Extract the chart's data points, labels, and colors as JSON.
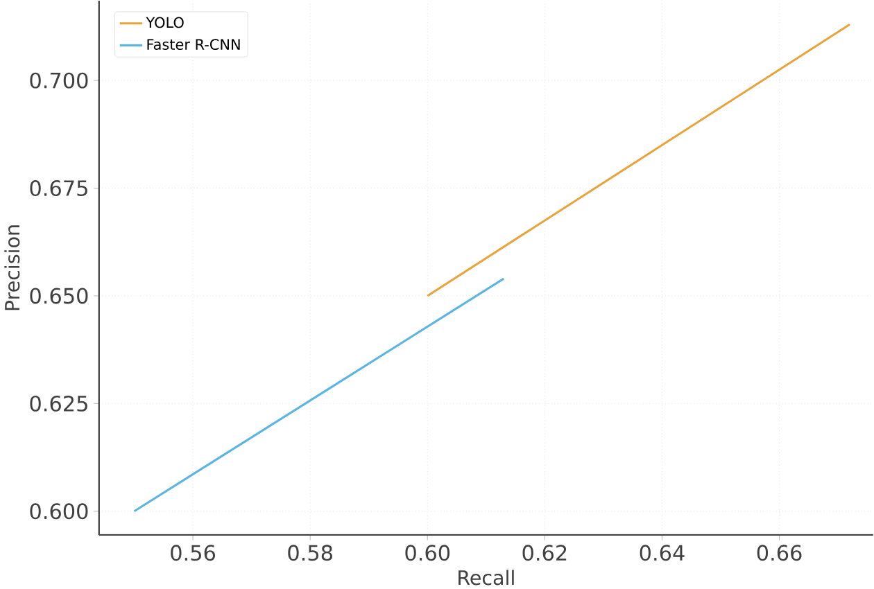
{
  "chart_data": {
    "type": "line",
    "xlabel": "Recall",
    "ylabel": "Precision",
    "xlim": [
      0.544,
      0.676
    ],
    "ylim": [
      0.5945,
      0.7185
    ],
    "xticks": [
      {
        "value": 0.56,
        "label": "0.56"
      },
      {
        "value": 0.58,
        "label": "0.58"
      },
      {
        "value": 0.6,
        "label": "0.60"
      },
      {
        "value": 0.62,
        "label": "0.62"
      },
      {
        "value": 0.64,
        "label": "0.64"
      },
      {
        "value": 0.66,
        "label": "0.66"
      }
    ],
    "yticks": [
      {
        "value": 0.6,
        "label": "0.600"
      },
      {
        "value": 0.625,
        "label": "0.625"
      },
      {
        "value": 0.65,
        "label": "0.650"
      },
      {
        "value": 0.675,
        "label": "0.675"
      },
      {
        "value": 0.7,
        "label": "0.700"
      }
    ],
    "grid": true,
    "legend": "top left",
    "marker": "none",
    "line_style": "solid",
    "series": [
      {
        "name": "YOLO",
        "color": "#e8a33a",
        "x": [
          0.6,
          0.672
        ],
        "values": [
          0.65,
          0.713
        ]
      },
      {
        "name": "Faster R-CNN",
        "color": "#5bb5e3",
        "x": [
          0.55,
          0.613
        ],
        "values": [
          0.6,
          0.654
        ]
      }
    ]
  }
}
